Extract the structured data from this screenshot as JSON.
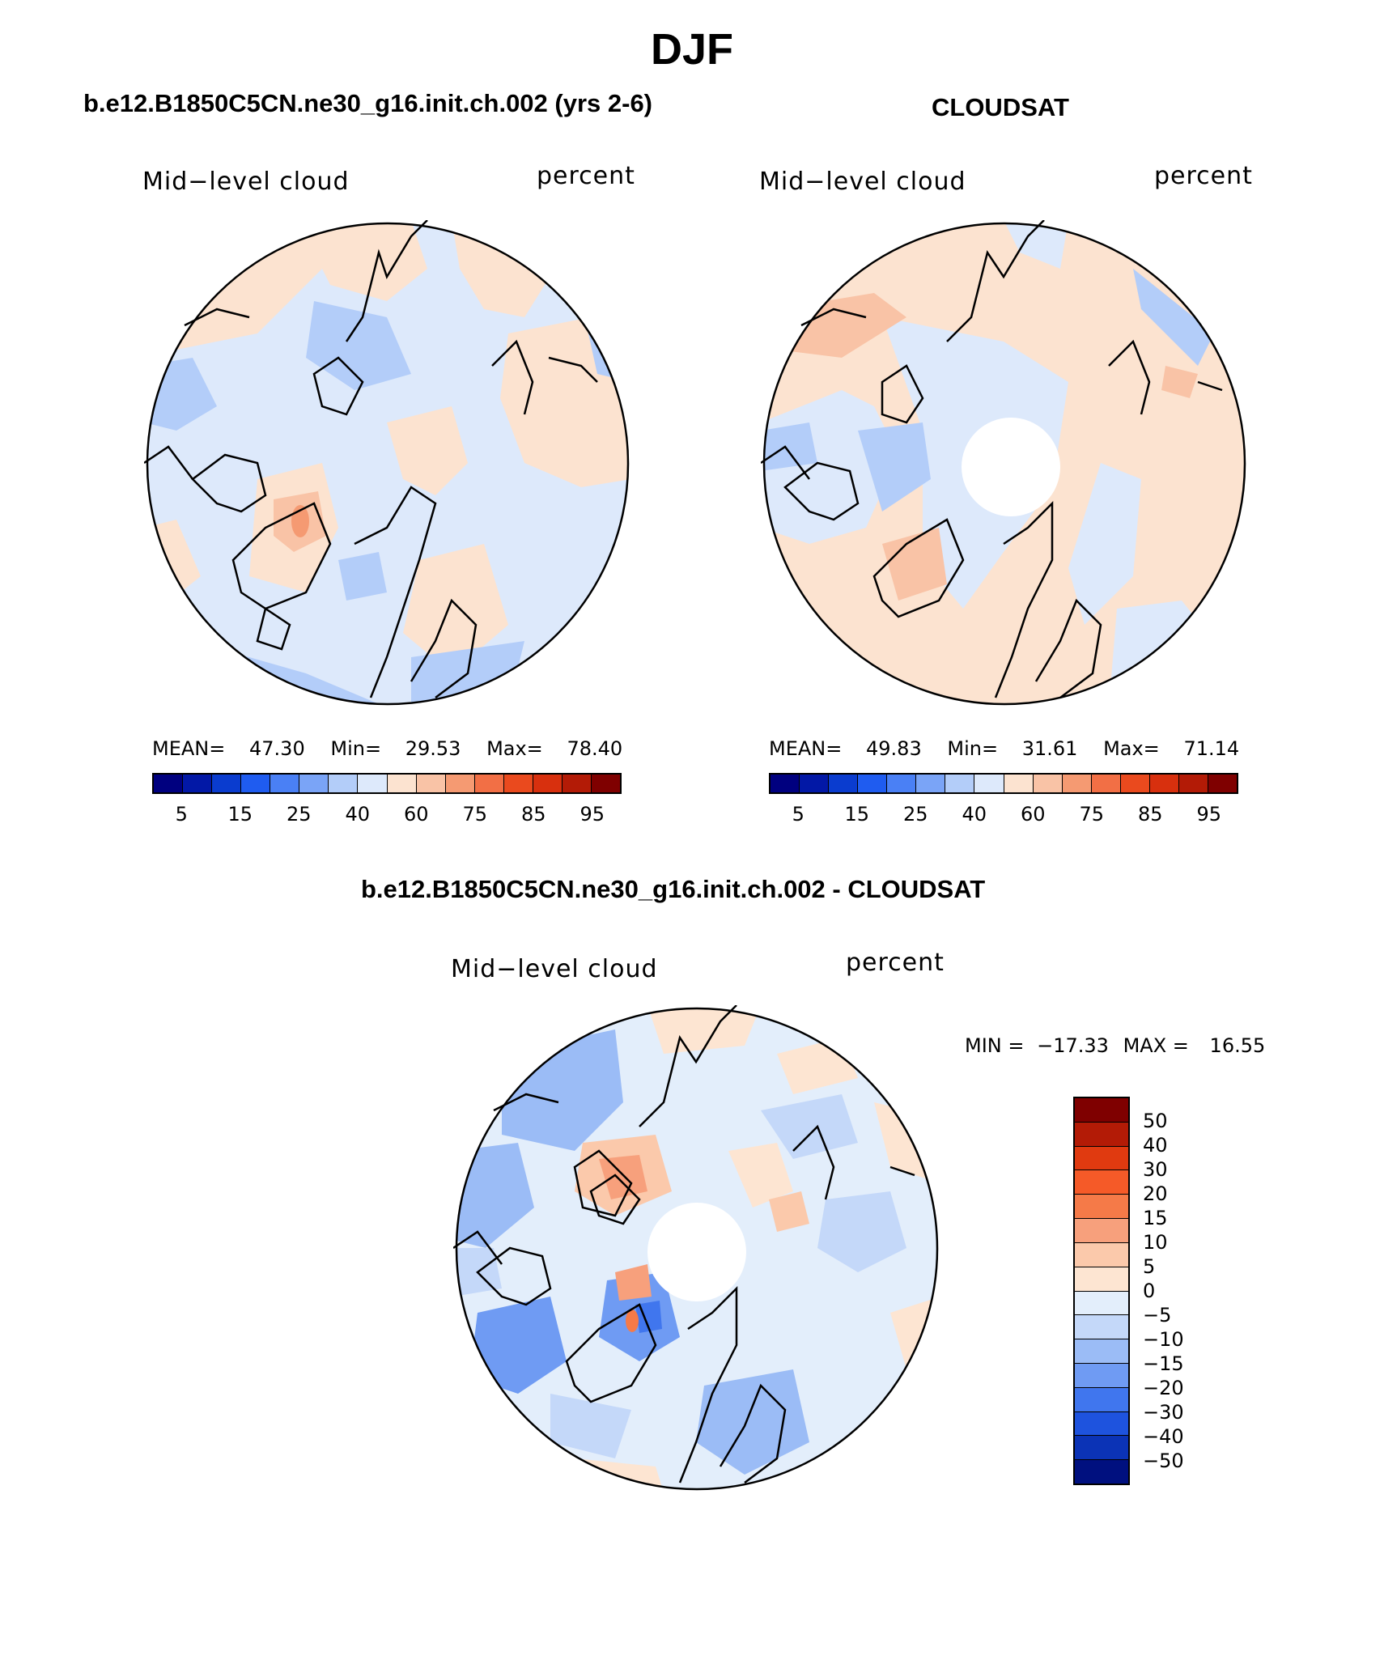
{
  "title": "DJF",
  "panels": [
    {
      "id": "model",
      "title": "b.e12.B1850C5CN.ne30_g16.init.ch.002 (yrs 2-6)",
      "variable": "Mid−level cloud",
      "units": "percent",
      "stats": {
        "mean_label": "MEAN=",
        "mean": "47.30",
        "min_label": "Min=",
        "min": "29.53",
        "max_label": "Max=",
        "max": "78.40"
      },
      "colorbar_ticks": [
        "5",
        "15",
        "25",
        "40",
        "60",
        "75",
        "85",
        "95"
      ]
    },
    {
      "id": "obs",
      "title": "CLOUDSAT",
      "variable": "Mid−level cloud",
      "units": "percent",
      "stats": {
        "mean_label": "MEAN=",
        "mean": "49.83",
        "min_label": "Min=",
        "min": "31.61",
        "max_label": "Max=",
        "max": "71.14"
      },
      "colorbar_ticks": [
        "5",
        "15",
        "25",
        "40",
        "60",
        "75",
        "85",
        "95"
      ]
    }
  ],
  "diff_panel": {
    "title": "b.e12.B1850C5CN.ne30_g16.init.ch.002 - CLOUDSAT",
    "variable": "Mid−level cloud",
    "units": "percent",
    "minmax": {
      "min_label": "MIN =",
      "min": "−17.33",
      "max_label": "MAX =",
      "max": "16.55"
    },
    "colorbar_ticks": [
      "50",
      "40",
      "30",
      "20",
      "15",
      "10",
      "5",
      "0",
      "−5",
      "−10",
      "−15",
      "−20",
      "−30",
      "−40",
      "−50"
    ]
  },
  "colors": {
    "abs_scale": [
      "#00007f",
      "#0218a6",
      "#0a3ccf",
      "#1f5cf0",
      "#4a80f5",
      "#7aa4f7",
      "#b3cdf9",
      "#dde9fb",
      "#fce3d0",
      "#f9c3a6",
      "#f59a72",
      "#f26f45",
      "#ea4a1e",
      "#d8300e",
      "#b31b06",
      "#7f0000"
    ],
    "diff_scale": [
      "#7f0000",
      "#b31b06",
      "#e03a10",
      "#f55a28",
      "#f57a48",
      "#f7a07c",
      "#fbc9ab",
      "#fde5d2",
      "#e3eefb",
      "#c4d8f9",
      "#9bbcf6",
      "#6f9bf3",
      "#4076ee",
      "#1e53de",
      "#0b33b6",
      "#00107f"
    ]
  }
}
